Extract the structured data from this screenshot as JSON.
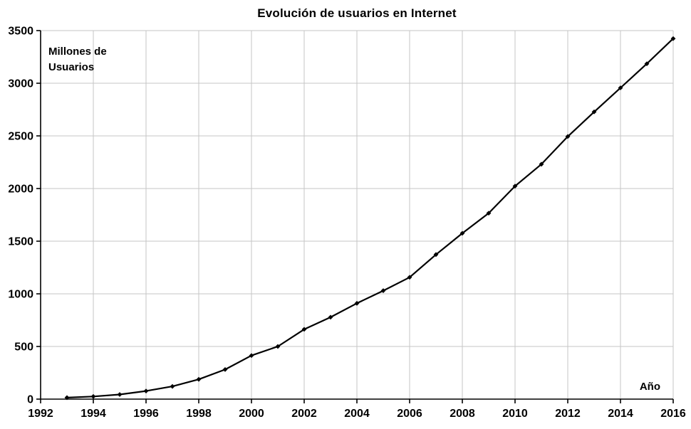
{
  "title": "Evolución de usuarios en Internet",
  "axis_labels": {
    "y_line1": "Millones de",
    "y_line2": "Usuarios",
    "x": "Año"
  },
  "colors": {
    "background": "#ffffff",
    "line": "#000000",
    "axis": "#000000",
    "grid": "#c6c6c6",
    "text": "#000000"
  },
  "chart_data": {
    "type": "line",
    "title": "Evolución de usuarios en Internet",
    "xlabel": "Año",
    "ylabel": "Millones de Usuarios",
    "x": [
      1993,
      1994,
      1995,
      1996,
      1997,
      1998,
      1999,
      2000,
      2001,
      2002,
      2003,
      2004,
      2005,
      2006,
      2007,
      2008,
      2009,
      2010,
      2011,
      2012,
      2013,
      2014,
      2015,
      2016
    ],
    "values": [
      14,
      25,
      44,
      77,
      121,
      188,
      281,
      414,
      500,
      663,
      778,
      910,
      1030,
      1157,
      1373,
      1575,
      1766,
      2023,
      2231,
      2494,
      2728,
      2956,
      3185,
      3424
    ],
    "xlim": [
      1992,
      2016
    ],
    "ylim": [
      0,
      3500
    ],
    "x_ticks": [
      1992,
      1994,
      1996,
      1998,
      2000,
      2002,
      2004,
      2006,
      2008,
      2010,
      2012,
      2014,
      2016
    ],
    "y_ticks": [
      0,
      500,
      1000,
      1500,
      2000,
      2500,
      3000,
      3500
    ],
    "grid": true,
    "legend": false,
    "marker": "diamond",
    "line_color": "#000000",
    "grid_color": "#c6c6c6"
  }
}
